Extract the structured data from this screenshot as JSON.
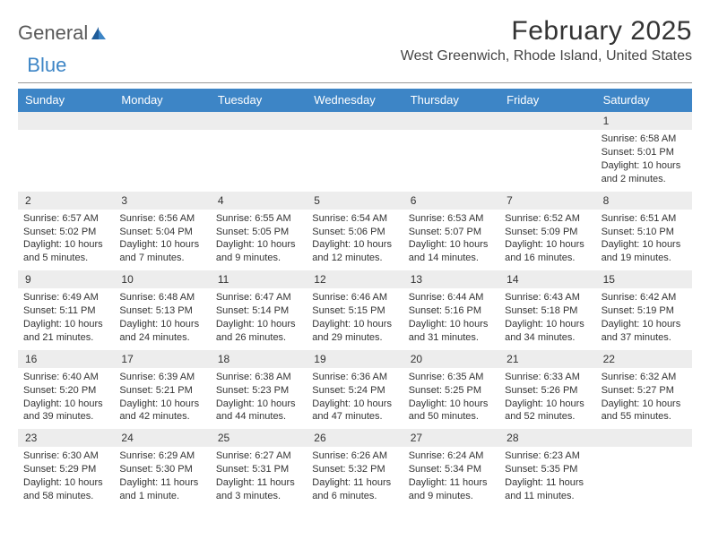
{
  "brand": {
    "word1": "General",
    "word2": "Blue"
  },
  "title": "February 2025",
  "location": "West Greenwich, Rhode Island, United States",
  "colors": {
    "header_bg": "#3d85c6",
    "header_text": "#ffffff",
    "daynum_bg": "#ededed",
    "text": "#333333",
    "brand_gray": "#5a5a5a",
    "brand_blue": "#3d85c6",
    "page_bg": "#ffffff",
    "rule": "#999999"
  },
  "dayNames": [
    "Sunday",
    "Monday",
    "Tuesday",
    "Wednesday",
    "Thursday",
    "Friday",
    "Saturday"
  ],
  "weeks": [
    [
      {
        "n": "",
        "sunrise": "",
        "sunset": "",
        "daylight": ""
      },
      {
        "n": "",
        "sunrise": "",
        "sunset": "",
        "daylight": ""
      },
      {
        "n": "",
        "sunrise": "",
        "sunset": "",
        "daylight": ""
      },
      {
        "n": "",
        "sunrise": "",
        "sunset": "",
        "daylight": ""
      },
      {
        "n": "",
        "sunrise": "",
        "sunset": "",
        "daylight": ""
      },
      {
        "n": "",
        "sunrise": "",
        "sunset": "",
        "daylight": ""
      },
      {
        "n": "1",
        "sunrise": "Sunrise: 6:58 AM",
        "sunset": "Sunset: 5:01 PM",
        "daylight": "Daylight: 10 hours and 2 minutes."
      }
    ],
    [
      {
        "n": "2",
        "sunrise": "Sunrise: 6:57 AM",
        "sunset": "Sunset: 5:02 PM",
        "daylight": "Daylight: 10 hours and 5 minutes."
      },
      {
        "n": "3",
        "sunrise": "Sunrise: 6:56 AM",
        "sunset": "Sunset: 5:04 PM",
        "daylight": "Daylight: 10 hours and 7 minutes."
      },
      {
        "n": "4",
        "sunrise": "Sunrise: 6:55 AM",
        "sunset": "Sunset: 5:05 PM",
        "daylight": "Daylight: 10 hours and 9 minutes."
      },
      {
        "n": "5",
        "sunrise": "Sunrise: 6:54 AM",
        "sunset": "Sunset: 5:06 PM",
        "daylight": "Daylight: 10 hours and 12 minutes."
      },
      {
        "n": "6",
        "sunrise": "Sunrise: 6:53 AM",
        "sunset": "Sunset: 5:07 PM",
        "daylight": "Daylight: 10 hours and 14 minutes."
      },
      {
        "n": "7",
        "sunrise": "Sunrise: 6:52 AM",
        "sunset": "Sunset: 5:09 PM",
        "daylight": "Daylight: 10 hours and 16 minutes."
      },
      {
        "n": "8",
        "sunrise": "Sunrise: 6:51 AM",
        "sunset": "Sunset: 5:10 PM",
        "daylight": "Daylight: 10 hours and 19 minutes."
      }
    ],
    [
      {
        "n": "9",
        "sunrise": "Sunrise: 6:49 AM",
        "sunset": "Sunset: 5:11 PM",
        "daylight": "Daylight: 10 hours and 21 minutes."
      },
      {
        "n": "10",
        "sunrise": "Sunrise: 6:48 AM",
        "sunset": "Sunset: 5:13 PM",
        "daylight": "Daylight: 10 hours and 24 minutes."
      },
      {
        "n": "11",
        "sunrise": "Sunrise: 6:47 AM",
        "sunset": "Sunset: 5:14 PM",
        "daylight": "Daylight: 10 hours and 26 minutes."
      },
      {
        "n": "12",
        "sunrise": "Sunrise: 6:46 AM",
        "sunset": "Sunset: 5:15 PM",
        "daylight": "Daylight: 10 hours and 29 minutes."
      },
      {
        "n": "13",
        "sunrise": "Sunrise: 6:44 AM",
        "sunset": "Sunset: 5:16 PM",
        "daylight": "Daylight: 10 hours and 31 minutes."
      },
      {
        "n": "14",
        "sunrise": "Sunrise: 6:43 AM",
        "sunset": "Sunset: 5:18 PM",
        "daylight": "Daylight: 10 hours and 34 minutes."
      },
      {
        "n": "15",
        "sunrise": "Sunrise: 6:42 AM",
        "sunset": "Sunset: 5:19 PM",
        "daylight": "Daylight: 10 hours and 37 minutes."
      }
    ],
    [
      {
        "n": "16",
        "sunrise": "Sunrise: 6:40 AM",
        "sunset": "Sunset: 5:20 PM",
        "daylight": "Daylight: 10 hours and 39 minutes."
      },
      {
        "n": "17",
        "sunrise": "Sunrise: 6:39 AM",
        "sunset": "Sunset: 5:21 PM",
        "daylight": "Daylight: 10 hours and 42 minutes."
      },
      {
        "n": "18",
        "sunrise": "Sunrise: 6:38 AM",
        "sunset": "Sunset: 5:23 PM",
        "daylight": "Daylight: 10 hours and 44 minutes."
      },
      {
        "n": "19",
        "sunrise": "Sunrise: 6:36 AM",
        "sunset": "Sunset: 5:24 PM",
        "daylight": "Daylight: 10 hours and 47 minutes."
      },
      {
        "n": "20",
        "sunrise": "Sunrise: 6:35 AM",
        "sunset": "Sunset: 5:25 PM",
        "daylight": "Daylight: 10 hours and 50 minutes."
      },
      {
        "n": "21",
        "sunrise": "Sunrise: 6:33 AM",
        "sunset": "Sunset: 5:26 PM",
        "daylight": "Daylight: 10 hours and 52 minutes."
      },
      {
        "n": "22",
        "sunrise": "Sunrise: 6:32 AM",
        "sunset": "Sunset: 5:27 PM",
        "daylight": "Daylight: 10 hours and 55 minutes."
      }
    ],
    [
      {
        "n": "23",
        "sunrise": "Sunrise: 6:30 AM",
        "sunset": "Sunset: 5:29 PM",
        "daylight": "Daylight: 10 hours and 58 minutes."
      },
      {
        "n": "24",
        "sunrise": "Sunrise: 6:29 AM",
        "sunset": "Sunset: 5:30 PM",
        "daylight": "Daylight: 11 hours and 1 minute."
      },
      {
        "n": "25",
        "sunrise": "Sunrise: 6:27 AM",
        "sunset": "Sunset: 5:31 PM",
        "daylight": "Daylight: 11 hours and 3 minutes."
      },
      {
        "n": "26",
        "sunrise": "Sunrise: 6:26 AM",
        "sunset": "Sunset: 5:32 PM",
        "daylight": "Daylight: 11 hours and 6 minutes."
      },
      {
        "n": "27",
        "sunrise": "Sunrise: 6:24 AM",
        "sunset": "Sunset: 5:34 PM",
        "daylight": "Daylight: 11 hours and 9 minutes."
      },
      {
        "n": "28",
        "sunrise": "Sunrise: 6:23 AM",
        "sunset": "Sunset: 5:35 PM",
        "daylight": "Daylight: 11 hours and 11 minutes."
      },
      {
        "n": "",
        "sunrise": "",
        "sunset": "",
        "daylight": ""
      }
    ]
  ]
}
